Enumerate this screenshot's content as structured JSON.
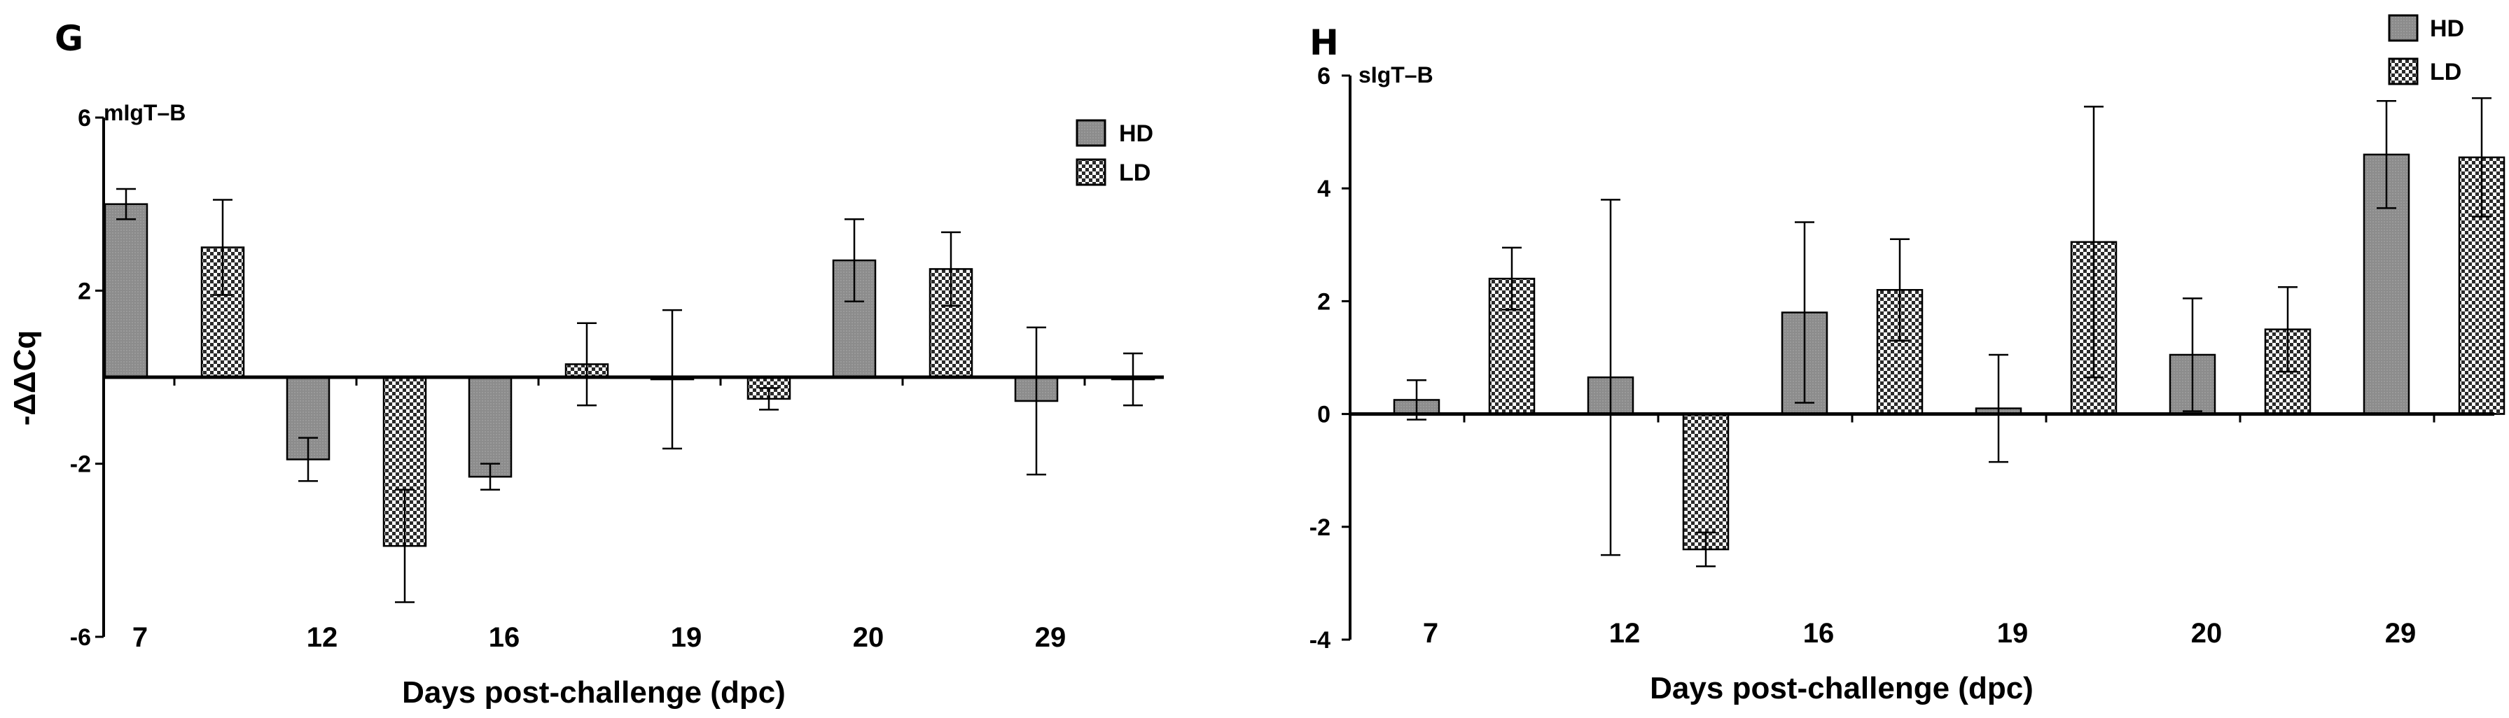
{
  "colors": {
    "hd_fill": "#8c8c8c",
    "ld_fill": "#ffffff",
    "ld_check": "#2a2a2a",
    "axis": "#000000"
  },
  "chart_data": [
    {
      "panel": "G",
      "type": "bar",
      "title": "mIgT–B",
      "xlabel": "Days post-challenge (dpc)",
      "ylabel": "-ΔΔCq",
      "categories": [
        "7",
        "12",
        "16",
        "19",
        "20",
        "29"
      ],
      "ylim": [
        -6,
        6
      ],
      "yticks": [
        "6",
        "2",
        "-2",
        "-6"
      ],
      "yticks_values": [
        6,
        2,
        -2,
        -6
      ],
      "legend_position": "top-right",
      "grid": false,
      "series": [
        {
          "name": "HD",
          "pattern": "solid-gray",
          "values": [
            4.0,
            -1.9,
            -2.3,
            -0.05,
            2.7,
            -0.55
          ],
          "errors": [
            0.35,
            0.5,
            0.3,
            1.6,
            0.95,
            1.7
          ]
        },
        {
          "name": "LD",
          "pattern": "checkered",
          "values": [
            3.0,
            -3.9,
            0.3,
            -0.5,
            2.5,
            -0.05
          ],
          "errors": [
            1.1,
            1.3,
            0.95,
            0.25,
            0.85,
            0.6
          ]
        }
      ]
    },
    {
      "panel": "H",
      "type": "bar",
      "title": "sIgT–B",
      "xlabel": "Days post-challenge (dpc)",
      "ylabel": "",
      "categories": [
        "7",
        "12",
        "16",
        "19",
        "20",
        "29"
      ],
      "ylim": [
        -4,
        6
      ],
      "yticks": [
        "6",
        "4",
        "2",
        "0",
        "-2",
        "-4"
      ],
      "yticks_values": [
        6,
        4,
        2,
        0,
        -2,
        -4
      ],
      "legend_position": "top-right",
      "grid": false,
      "series": [
        {
          "name": "HD",
          "pattern": "solid-gray",
          "values": [
            0.25,
            0.65,
            1.8,
            0.1,
            1.05,
            4.6
          ],
          "errors": [
            0.35,
            3.15,
            1.6,
            0.95,
            1.0,
            0.95
          ]
        },
        {
          "name": "LD",
          "pattern": "checkered",
          "values": [
            2.4,
            -2.4,
            2.2,
            3.05,
            1.5,
            4.55
          ],
          "errors": [
            0.55,
            0.3,
            0.9,
            2.4,
            0.75,
            1.05
          ]
        }
      ]
    }
  ]
}
